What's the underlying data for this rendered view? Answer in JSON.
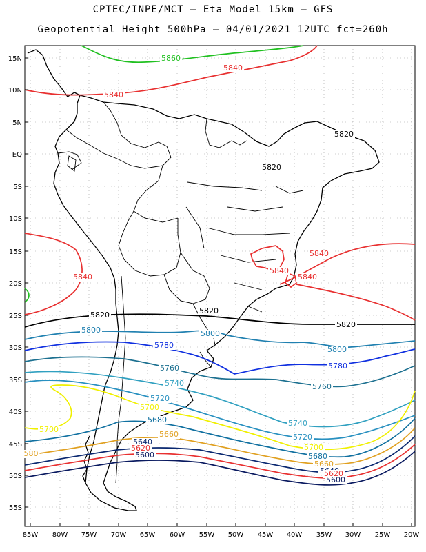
{
  "header": {
    "line1": "CPTEC/INPE/MCT –  Eta Model 15km – GFS",
    "line2": "Geopotential Height 500hPa – 04/01/2021 12UTC fct=260h"
  },
  "axes": {
    "lat_labels": [
      "15N",
      "10N",
      "5N",
      "EQ",
      "5S",
      "10S",
      "15S",
      "20S",
      "25S",
      "30S",
      "35S",
      "40S",
      "45S",
      "50S",
      "55S"
    ],
    "lon_labels": [
      "85W",
      "80W",
      "75W",
      "70W",
      "65W",
      "60W",
      "55W",
      "50W",
      "45W",
      "40W",
      "35W",
      "30W",
      "25W",
      "20W"
    ],
    "grid": "dotted"
  },
  "colors": {
    "c5860": "#20c020",
    "c5840": "#e83030",
    "c5820": "#000000",
    "c5800": "#2080b0",
    "c5780": "#1030e0",
    "c5760": "#1c7090",
    "c5740": "#30a0c0",
    "c5720": "#2890c0",
    "c5700": "#f0f000",
    "c5680": "#1070a0",
    "c5660": "#e0a020",
    "c5640": "#0a2870",
    "c5620": "#e83030",
    "c5600": "#0a1a60"
  },
  "contour_labels": [
    {
      "text": "5860",
      "color": "c5860"
    },
    {
      "text": "5840",
      "color": "c5840"
    },
    {
      "text": "5840",
      "color": "c5840"
    },
    {
      "text": "5820",
      "color": "c5820"
    },
    {
      "text": "5820",
      "color": "c5820"
    },
    {
      "text": "5840",
      "color": "c5840"
    },
    {
      "text": "5840",
      "color": "c5840"
    },
    {
      "text": "5840",
      "color": "c5840"
    },
    {
      "text": "5840",
      "color": "c5840"
    },
    {
      "text": "5820",
      "color": "c5820"
    },
    {
      "text": "5820",
      "color": "c5820"
    },
    {
      "text": "5820",
      "color": "c5820"
    },
    {
      "text": "5800",
      "color": "c5800"
    },
    {
      "text": "5800",
      "color": "c5800"
    },
    {
      "text": "5800",
      "color": "c5800"
    },
    {
      "text": "5780",
      "color": "c5780"
    },
    {
      "text": "5780",
      "color": "c5780"
    },
    {
      "text": "5760",
      "color": "c5760"
    },
    {
      "text": "5760",
      "color": "c5760"
    },
    {
      "text": "5740",
      "color": "c5740"
    },
    {
      "text": "5740",
      "color": "c5740"
    },
    {
      "text": "5720",
      "color": "c5720"
    },
    {
      "text": "5720",
      "color": "c5720"
    },
    {
      "text": "5700",
      "color": "c5700"
    },
    {
      "text": "5700",
      "color": "c5700"
    },
    {
      "text": "5700",
      "color": "c5700"
    },
    {
      "text": "5680",
      "color": "c5680"
    },
    {
      "text": "5680",
      "color": "c5680"
    },
    {
      "text": "5660",
      "color": "c5660"
    },
    {
      "text": "5660",
      "color": "c5660"
    },
    {
      "text": "5640",
      "color": "c5640"
    },
    {
      "text": "5640",
      "color": "c5640"
    },
    {
      "text": "5620",
      "color": "c5620"
    },
    {
      "text": "5620",
      "color": "c5620"
    },
    {
      "text": "5600",
      "color": "c5600"
    },
    {
      "text": "5600",
      "color": "c5600"
    },
    {
      "text": "580",
      "color": "c5660"
    }
  ]
}
